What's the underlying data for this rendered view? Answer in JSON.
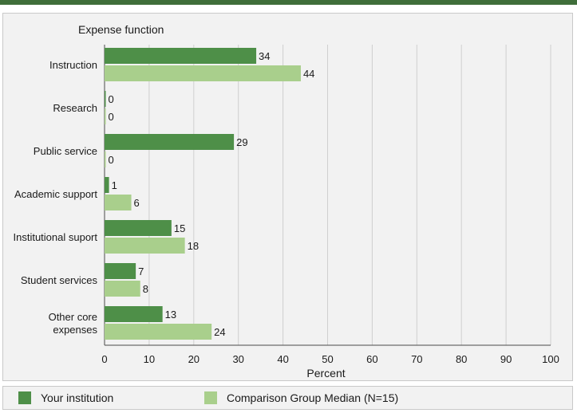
{
  "chart_data": {
    "type": "bar",
    "orientation": "horizontal",
    "title": "Expense function",
    "xlabel": "Percent",
    "ylabel": "",
    "xlim": [
      0,
      100
    ],
    "ticks": [
      "0",
      "10",
      "20",
      "30",
      "40",
      "50",
      "60",
      "70",
      "80",
      "90",
      "100"
    ],
    "categories": [
      [
        "Instruction"
      ],
      [
        "Research"
      ],
      [
        "Public service"
      ],
      [
        "Academic support"
      ],
      [
        "Institutional suport"
      ],
      [
        "Student services"
      ],
      [
        "Other core",
        "expenses"
      ]
    ],
    "series": [
      {
        "name": "Your institution",
        "color": "#4e8f48",
        "values": [
          34,
          0,
          29,
          1,
          15,
          7,
          13
        ]
      },
      {
        "name": "Comparison Group Median (N=15)",
        "color": "#a9cf8c",
        "values": [
          44,
          0,
          0,
          6,
          18,
          8,
          24
        ]
      }
    ],
    "grid": true,
    "legend_position": "bottom"
  }
}
